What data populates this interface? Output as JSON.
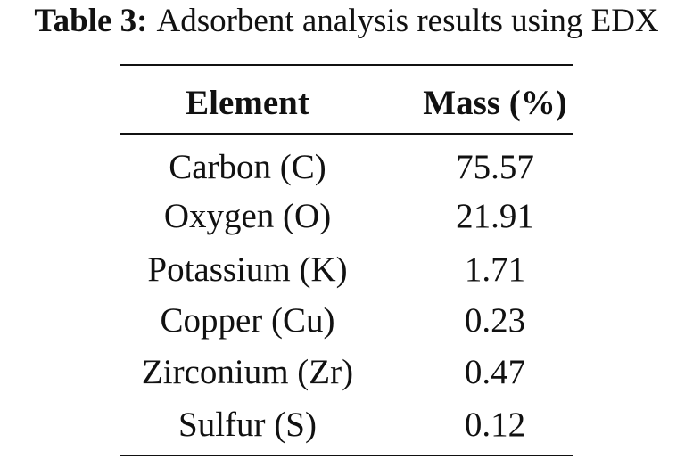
{
  "table": {
    "caption": {
      "label": "Table 3:",
      "text": "Adsorbent analysis results using EDX"
    },
    "header": [
      "Element",
      "Mass (%)"
    ],
    "rows": [
      [
        "Carbon (C)",
        "75.57"
      ],
      [
        "Oxygen (O)",
        "21.91"
      ],
      [
        "Potassium (K)",
        "1.71"
      ],
      [
        "Copper (Cu)",
        "0.23"
      ],
      [
        "Zirconium (Zr)",
        "0.47"
      ],
      [
        "Sulfur (S)",
        "0.12"
      ]
    ]
  }
}
